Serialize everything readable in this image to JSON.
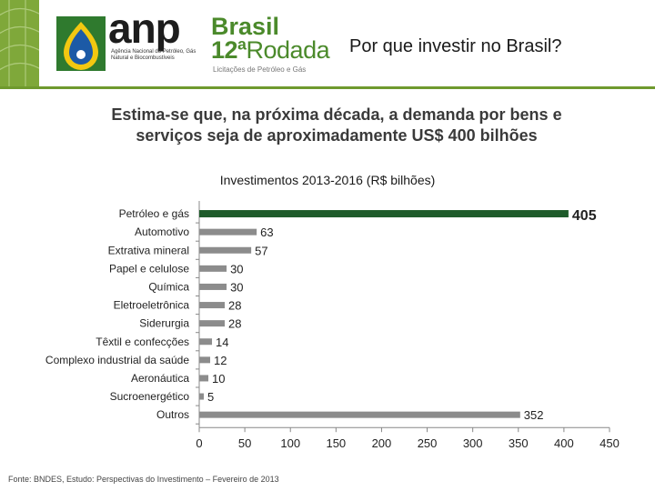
{
  "header": {
    "anp_logo": {
      "wordmark": "anp",
      "subtitle": "Agência Nacional do Petróleo, Gás Natural e Biocombustíveis"
    },
    "round_logo": {
      "line1": "Brasil",
      "round_number": "12ª",
      "round_word": "Rodada",
      "tagline": "Licitações de Petróleo e Gás"
    },
    "page_title": "Por que investir no Brasil?"
  },
  "headline": {
    "line1": "Estima-se que, na próxima década, a demanda por bens e",
    "line2": "serviços seja de aproximadamente US$ 400 bilhões"
  },
  "colors": {
    "header_green": "#7fa83a",
    "highlight_bar": "#1e5b2a",
    "default_bar": "#8c8c8c"
  },
  "chart_data": {
    "type": "bar",
    "orientation": "horizontal",
    "title": "Investimentos 2013-2016 (R$ bilhões)",
    "categories": [
      "Petróleo e gás",
      "Automotivo",
      "Extrativa mineral",
      "Papel e celulose",
      "Química",
      "Eletroeletrônica",
      "Siderurgia",
      "Têxtil e confecções",
      "Complexo industrial da saúde",
      "Aeronáutica",
      "Sucroenergético",
      "Outros"
    ],
    "values": [
      405,
      63,
      57,
      30,
      30,
      28,
      28,
      14,
      12,
      10,
      5,
      352
    ],
    "value_labels": [
      "405",
      "63",
      "57",
      "30",
      "30",
      "28",
      "28",
      "14",
      "12",
      "10",
      "5",
      "352"
    ],
    "highlight_index": 0,
    "xlim": [
      0,
      450
    ],
    "xticks": [
      0,
      50,
      100,
      150,
      200,
      250,
      300,
      350,
      400,
      450
    ],
    "grid": false,
    "legend": "none"
  },
  "footer": {
    "source": "Fonte: BNDES, Estudo: Perspectivas do Investimento – Fevereiro de 2013"
  }
}
